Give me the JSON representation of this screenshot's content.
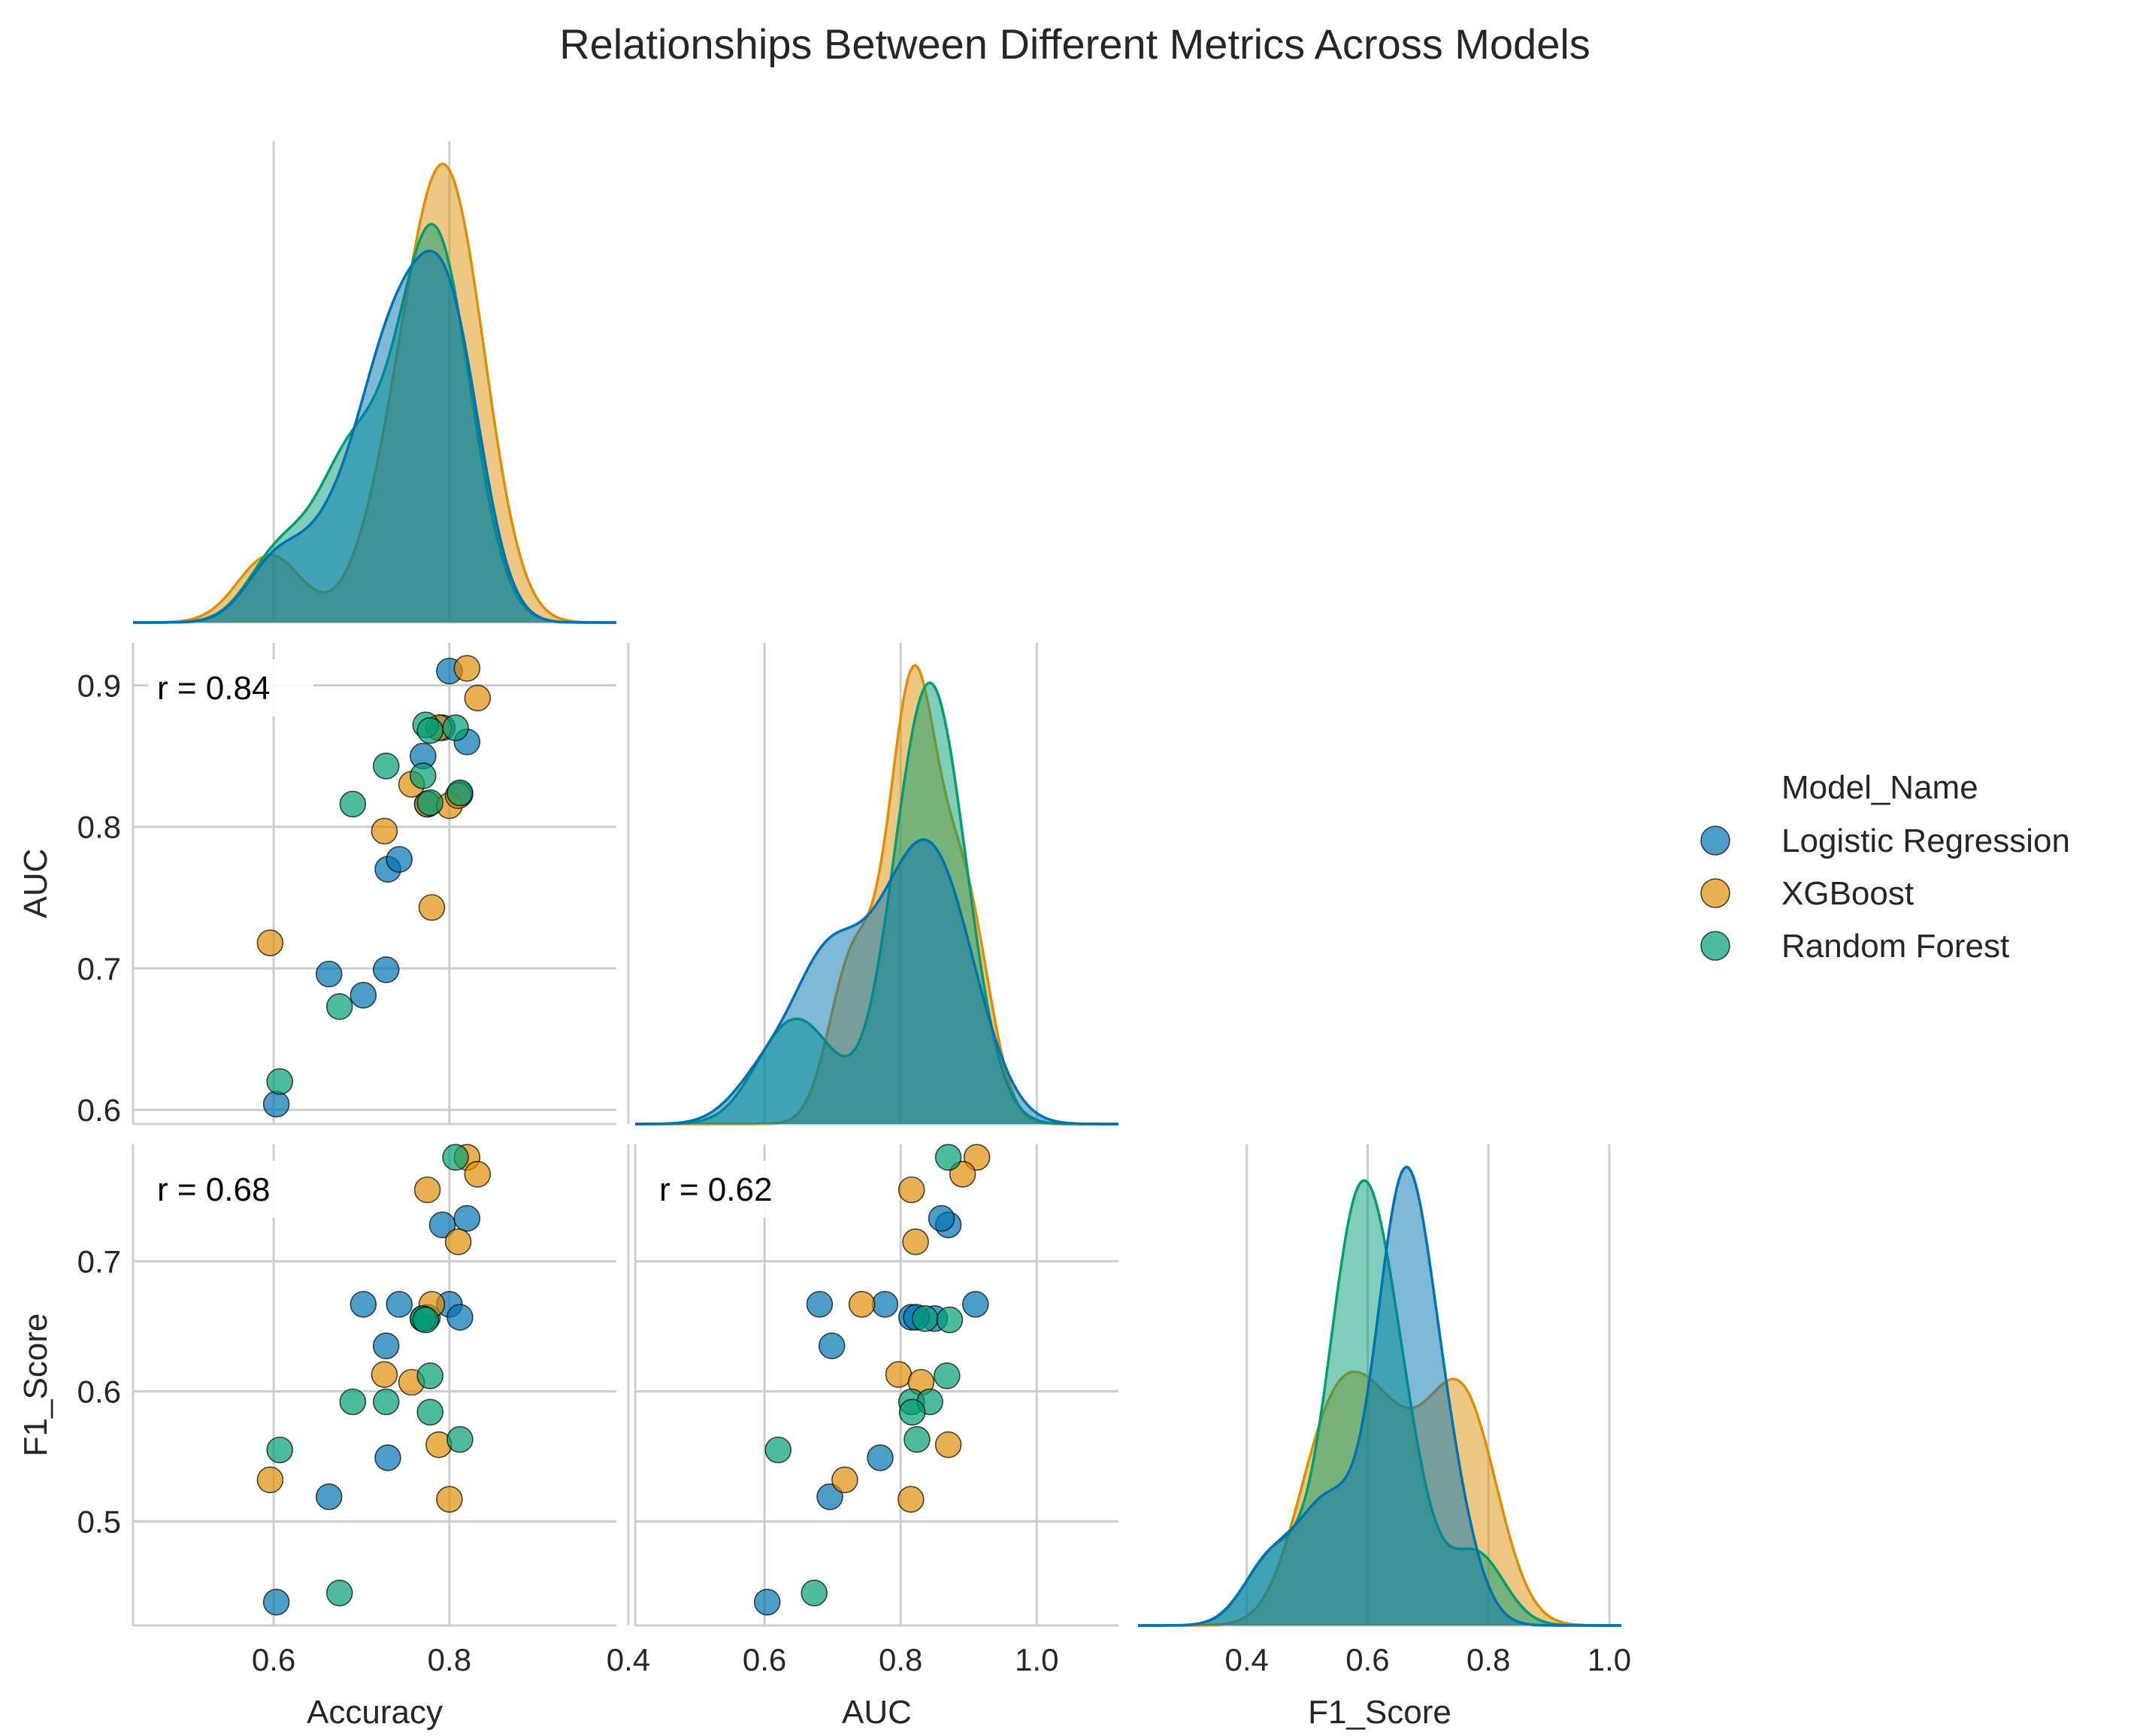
{
  "chart_data": {
    "type": "scatter",
    "title": "Relationships Between Different Metrics Across Models",
    "variables": [
      "Accuracy",
      "AUC",
      "F1_Score"
    ],
    "legend": {
      "title": "Model_Name",
      "placement": "right"
    },
    "grid": true,
    "diag_kind": "kde",
    "axes": {
      "Accuracy": {
        "ticks": [
          0.6,
          0.8
        ],
        "tick_labels": [
          "0.6",
          "0.8"
        ],
        "range": [
          0.44,
          0.99
        ]
      },
      "AUC": {
        "ticks": [
          0.4,
          0.6,
          0.8,
          1.0
        ],
        "tick_labels": [
          "0.4",
          "0.6",
          "0.8",
          "1.0"
        ],
        "range": [
          0.41,
          1.12
        ],
        "scatter_ticks": [
          0.6,
          0.7,
          0.8,
          0.9
        ],
        "scatter_tick_labels": [
          "0.6",
          "0.7",
          "0.8",
          "0.9"
        ],
        "scatter_range": [
          0.59,
          0.93
        ]
      },
      "F1_Score": {
        "ticks": [
          0.4,
          0.6,
          0.8,
          1.0
        ],
        "tick_labels": [
          "0.4",
          "0.6",
          "0.8",
          "1.0"
        ],
        "range": [
          0.22,
          1.02
        ],
        "scatter_ticks": [
          0.5,
          0.6,
          0.7
        ],
        "scatter_tick_labels": [
          "0.5",
          "0.6",
          "0.7"
        ],
        "scatter_range": [
          0.42,
          0.79
        ]
      }
    },
    "correlations": [
      {
        "x": "Accuracy",
        "y": "AUC",
        "label": "r = 0.84"
      },
      {
        "x": "Accuracy",
        "y": "F1_Score",
        "label": "r = 0.68"
      },
      {
        "x": "AUC",
        "y": "F1_Score",
        "label": "r = 0.62"
      }
    ],
    "series": [
      {
        "name": "Logistic Regression",
        "color": "#0173b2",
        "points": [
          {
            "Accuracy": 0.603,
            "AUC": 0.604,
            "F1_Score": 0.438
          },
          {
            "Accuracy": 0.663,
            "AUC": 0.696,
            "F1_Score": 0.519
          },
          {
            "Accuracy": 0.702,
            "AUC": 0.681,
            "F1_Score": 0.667
          },
          {
            "Accuracy": 0.728,
            "AUC": 0.699,
            "F1_Score": 0.635
          },
          {
            "Accuracy": 0.73,
            "AUC": 0.77,
            "F1_Score": 0.549
          },
          {
            "Accuracy": 0.743,
            "AUC": 0.777,
            "F1_Score": 0.667
          },
          {
            "Accuracy": 0.77,
            "AUC": 0.85,
            "F1_Score": 0.656
          },
          {
            "Accuracy": 0.775,
            "AUC": 0.816,
            "F1_Score": 0.657
          },
          {
            "Accuracy": 0.792,
            "AUC": 0.87,
            "F1_Score": 0.728
          },
          {
            "Accuracy": 0.8,
            "AUC": 0.91,
            "F1_Score": 0.667
          },
          {
            "Accuracy": 0.812,
            "AUC": 0.823,
            "F1_Score": 0.657
          },
          {
            "Accuracy": 0.82,
            "AUC": 0.86,
            "F1_Score": 0.733
          }
        ]
      },
      {
        "name": "XGBoost",
        "color": "#de8f05",
        "points": [
          {
            "Accuracy": 0.596,
            "AUC": 0.718,
            "F1_Score": 0.532
          },
          {
            "Accuracy": 0.726,
            "AUC": 0.797,
            "F1_Score": 0.613
          },
          {
            "Accuracy": 0.757,
            "AUC": 0.83,
            "F1_Score": 0.607
          },
          {
            "Accuracy": 0.775,
            "AUC": 0.816,
            "F1_Score": 0.755
          },
          {
            "Accuracy": 0.78,
            "AUC": 0.743,
            "F1_Score": 0.667
          },
          {
            "Accuracy": 0.788,
            "AUC": 0.87,
            "F1_Score": 0.559
          },
          {
            "Accuracy": 0.8,
            "AUC": 0.815,
            "F1_Score": 0.517
          },
          {
            "Accuracy": 0.81,
            "AUC": 0.822,
            "F1_Score": 0.715
          },
          {
            "Accuracy": 0.82,
            "AUC": 0.912,
            "F1_Score": 0.78
          },
          {
            "Accuracy": 0.832,
            "AUC": 0.891,
            "F1_Score": 0.767
          }
        ]
      },
      {
        "name": "Random Forest",
        "color": "#029e73",
        "points": [
          {
            "Accuracy": 0.607,
            "AUC": 0.62,
            "F1_Score": 0.555
          },
          {
            "Accuracy": 0.675,
            "AUC": 0.673,
            "F1_Score": 0.445
          },
          {
            "Accuracy": 0.69,
            "AUC": 0.816,
            "F1_Score": 0.592
          },
          {
            "Accuracy": 0.728,
            "AUC": 0.843,
            "F1_Score": 0.592
          },
          {
            "Accuracy": 0.77,
            "AUC": 0.836,
            "F1_Score": 0.656
          },
          {
            "Accuracy": 0.773,
            "AUC": 0.872,
            "F1_Score": 0.655
          },
          {
            "Accuracy": 0.778,
            "AUC": 0.868,
            "F1_Score": 0.612
          },
          {
            "Accuracy": 0.778,
            "AUC": 0.817,
            "F1_Score": 0.584
          },
          {
            "Accuracy": 0.807,
            "AUC": 0.87,
            "F1_Score": 0.78
          },
          {
            "Accuracy": 0.812,
            "AUC": 0.824,
            "F1_Score": 0.563
          }
        ]
      }
    ]
  }
}
